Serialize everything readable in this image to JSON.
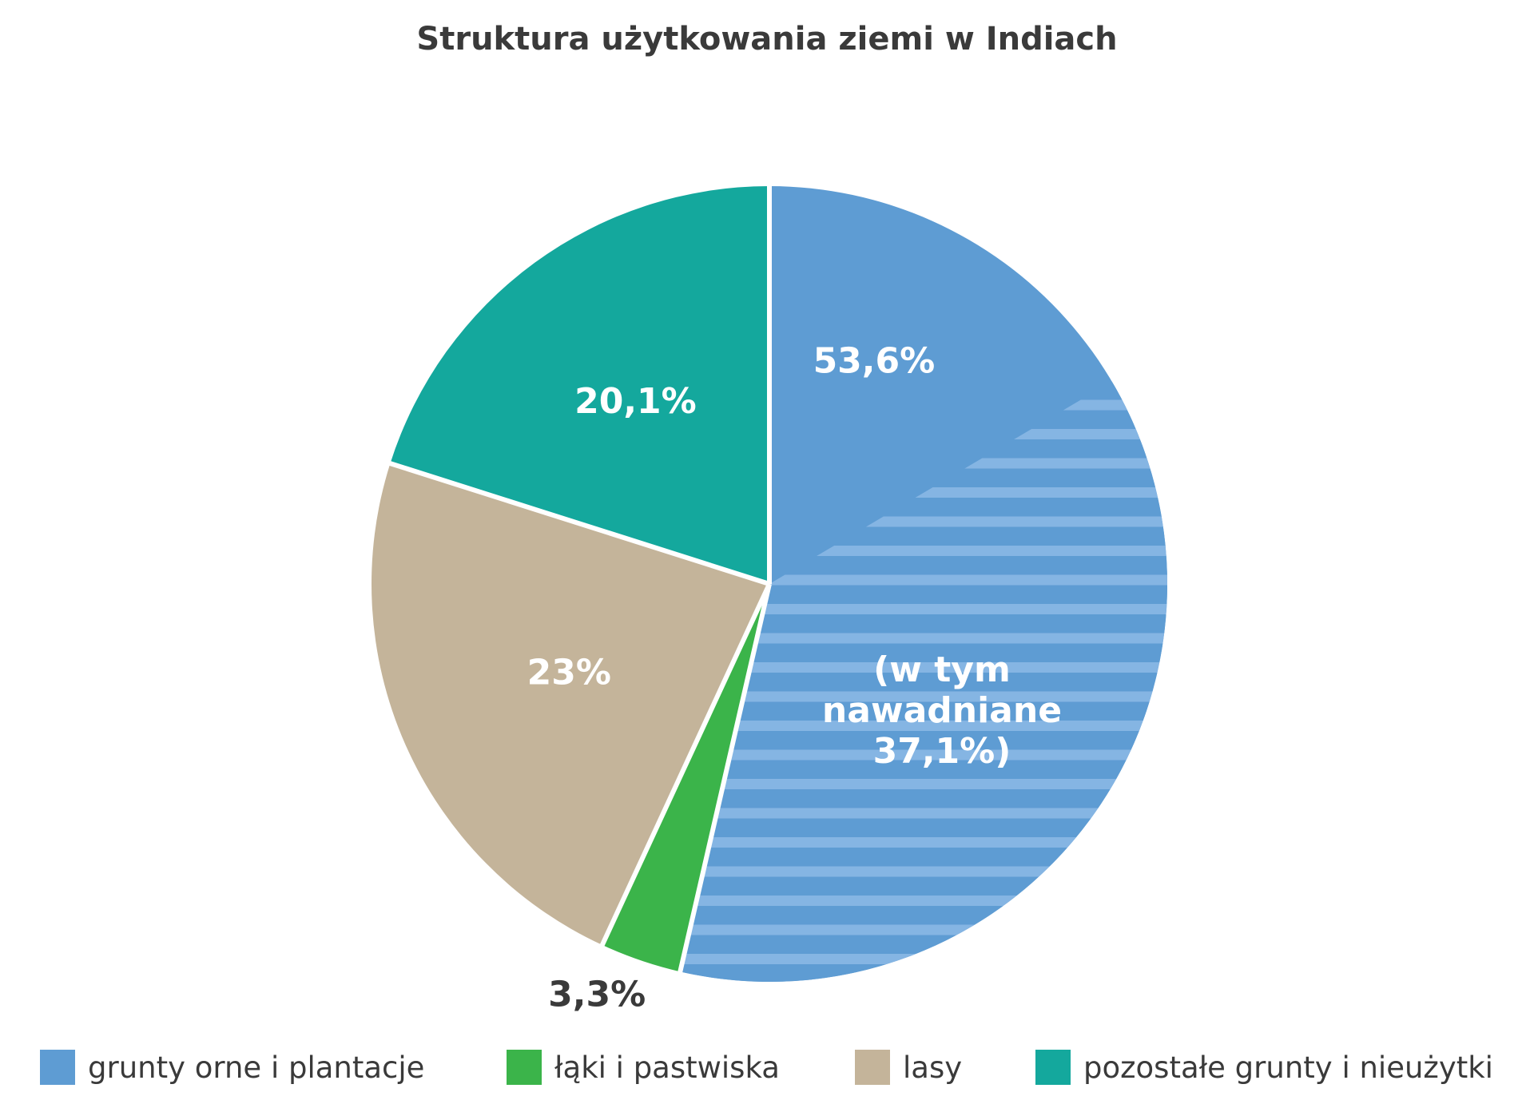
{
  "chart_data": {
    "type": "pie",
    "title": "Struktura użytkowania ziemi w Indiach",
    "slices": [
      {
        "name": "grunty orne i plantacje",
        "value": 53.6,
        "label": "53,6%",
        "color": "#5e9cd3"
      },
      {
        "name": "łąki i pastwiska",
        "value": 3.3,
        "label": "3,3%",
        "color": "#3bb44a"
      },
      {
        "name": "lasy",
        "value": 23,
        "label": "23%",
        "color": "#c4b49a"
      },
      {
        "name": "pozostałe grunty i nieużytki",
        "value": 20.1,
        "label": "20,1%",
        "color": "#14a89d"
      }
    ],
    "sub_slice": {
      "of": "grunty orne i plantacje",
      "value": 37.1,
      "label_lines": [
        "(w tym",
        "nawadniane",
        "37,1%)"
      ],
      "pattern": "horizontal-stripes",
      "stripe_color": "#85b5e3"
    },
    "legend_placement": "bottom"
  }
}
